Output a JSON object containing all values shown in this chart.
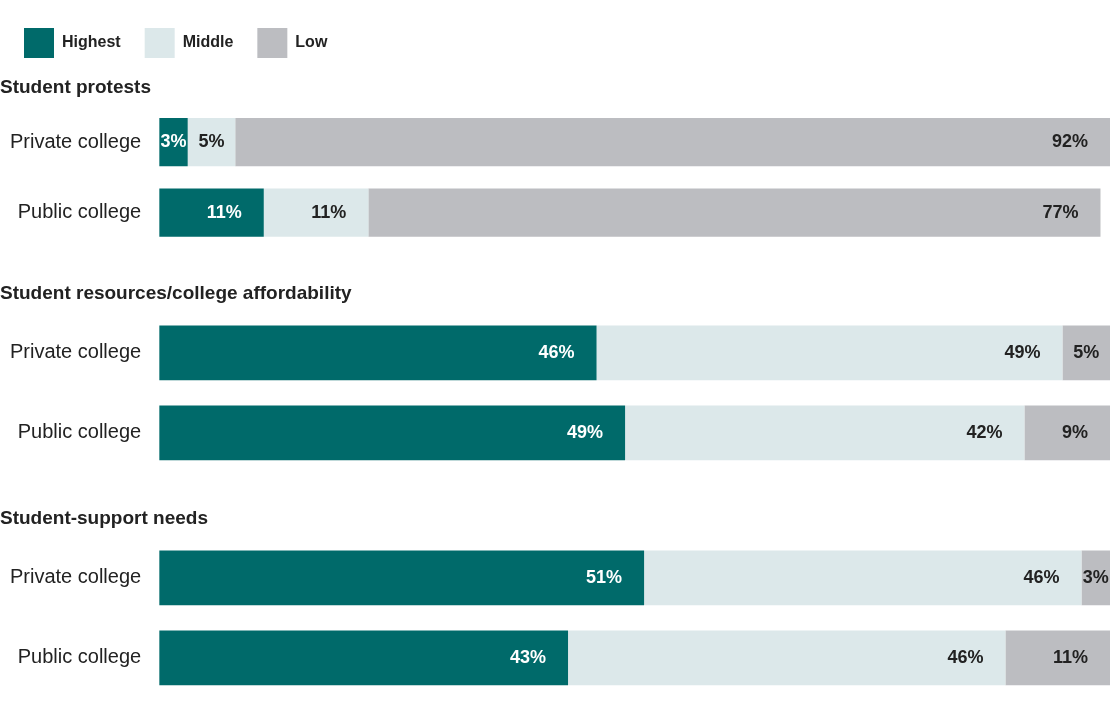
{
  "chart_data": [
    {
      "type": "bar",
      "title": "Student protests",
      "categories": [
        "Private college",
        "Public college"
      ],
      "orientation": "horizontal",
      "stacked": true,
      "xlim": [
        0,
        100
      ],
      "tick_labels": "y",
      "grid": false,
      "legend": "top left",
      "series": [
        {
          "name": "Highest",
          "color": "#006a6a",
          "values": [
            3,
            11
          ],
          "value_labels": [
            "3%",
            "11%"
          ]
        },
        {
          "name": "Middle",
          "color": "#dce8ea",
          "values": [
            5,
            11
          ],
          "value_labels": [
            "5%",
            "11%"
          ]
        },
        {
          "name": "Low",
          "color": "#bcbdc1",
          "values": [
            92,
            77
          ],
          "value_labels": [
            "92%",
            "77%"
          ]
        }
      ]
    },
    {
      "type": "bar",
      "title": "Student resources/college affordability",
      "categories": [
        "Private college",
        "Public college"
      ],
      "orientation": "horizontal",
      "stacked": true,
      "xlim": [
        0,
        100
      ],
      "tick_labels": "y",
      "grid": false,
      "series": [
        {
          "color": "#006a6a",
          "values": [
            46,
            49
          ],
          "value_labels": [
            "46%",
            "49%"
          ]
        },
        {
          "color": "#dce8ea",
          "values": [
            49,
            42
          ],
          "value_labels": [
            "49%",
            "42%"
          ]
        },
        {
          "color": "#bcbdc1",
          "values": [
            5,
            9
          ],
          "value_labels": [
            "5%",
            "9%"
          ]
        }
      ]
    },
    {
      "type": "bar",
      "title": "Student-support needs",
      "categories": [
        "Private college",
        "Public college"
      ],
      "orientation": "horizontal",
      "stacked": true,
      "xlim": [
        0,
        100
      ],
      "tick_labels": "y",
      "grid": false,
      "series": [
        {
          "color": "#006a6a",
          "values": [
            51,
            43
          ],
          "value_labels": [
            "51%",
            "43%"
          ]
        },
        {
          "color": "#dce8ea",
          "values": [
            46,
            46
          ],
          "value_labels": [
            "46%",
            "46%"
          ]
        },
        {
          "color": "#bcbdc1",
          "values": [
            3,
            11
          ],
          "value_labels": [
            "3%",
            "11%"
          ]
        }
      ]
    }
  ]
}
